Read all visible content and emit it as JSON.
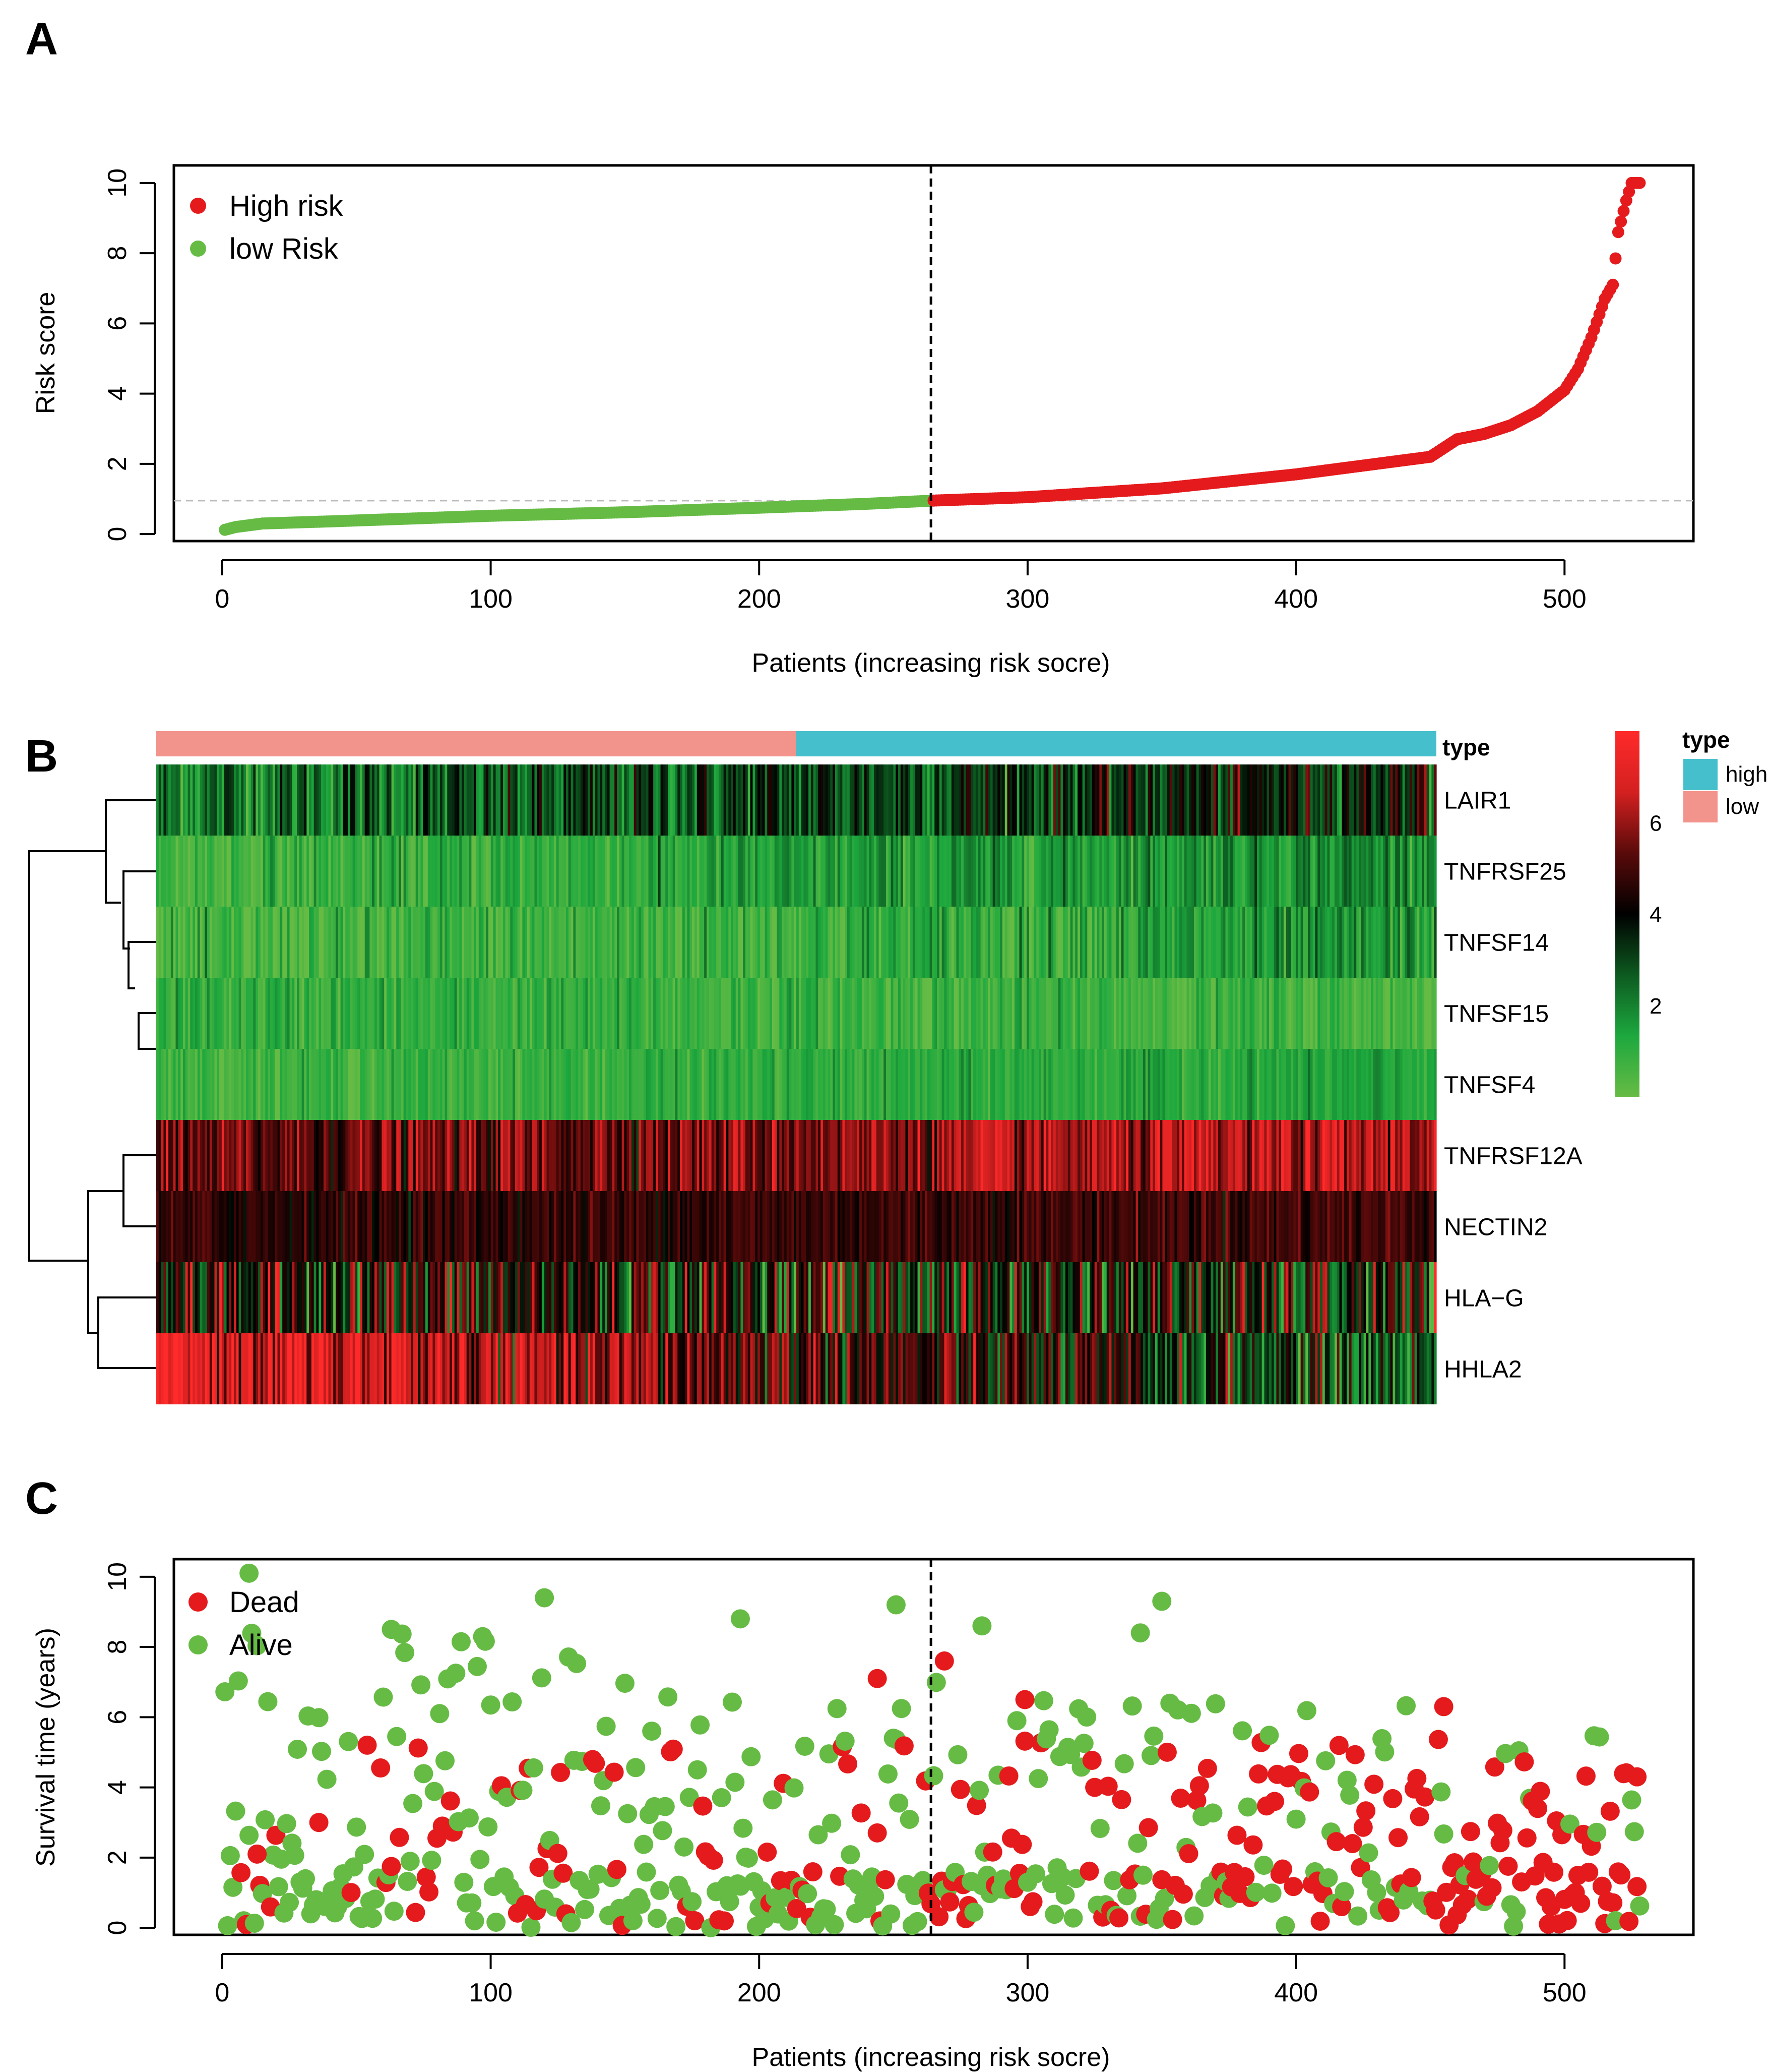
{
  "panels": {
    "a": "A",
    "b": "B",
    "c": "C"
  },
  "colors": {
    "high": "#e41a1c",
    "low": "#66bb44",
    "high_type": "#46bfcc",
    "low_type": "#f2938c",
    "axis": "#000000",
    "threshold_line": "#bbbbbb"
  },
  "chart_data": [
    {
      "id": "risk_score",
      "type": "scatter",
      "title": "",
      "xlabel": "Patients (increasing risk socre)",
      "ylabel": "Risk score",
      "xlim": [
        -18,
        548
      ],
      "ylim": [
        -0.2,
        10.5
      ],
      "xticks": [
        0,
        100,
        200,
        300,
        400,
        500
      ],
      "yticks": [
        0,
        2,
        4,
        6,
        8,
        10
      ],
      "cutoff_index": 264,
      "threshold_score": 0.95,
      "n_patients": 528,
      "legend": [
        {
          "label": "High risk",
          "color_key": "high"
        },
        {
          "label": "low Risk",
          "color_key": "low"
        }
      ],
      "legend_position": "top-left",
      "curve_points": [
        [
          1,
          0.12
        ],
        [
          5,
          0.2
        ],
        [
          15,
          0.3
        ],
        [
          40,
          0.36
        ],
        [
          100,
          0.52
        ],
        [
          150,
          0.62
        ],
        [
          200,
          0.75
        ],
        [
          240,
          0.86
        ],
        [
          264,
          0.95
        ],
        [
          300,
          1.05
        ],
        [
          350,
          1.3
        ],
        [
          400,
          1.7
        ],
        [
          430,
          2.0
        ],
        [
          450,
          2.2
        ],
        [
          460,
          2.7
        ],
        [
          470,
          2.85
        ],
        [
          480,
          3.1
        ],
        [
          490,
          3.5
        ],
        [
          500,
          4.1
        ],
        [
          505,
          4.7
        ],
        [
          510,
          5.6
        ],
        [
          515,
          6.7
        ],
        [
          518,
          7.1
        ],
        [
          520,
          8.6
        ],
        [
          523,
          9.5
        ],
        [
          525,
          10.0
        ],
        [
          528,
          10.0
        ]
      ]
    },
    {
      "id": "expression_heatmap",
      "type": "heatmap",
      "title": "",
      "genes": [
        "LAIR1",
        "TNFRSF25",
        "TNFSF14",
        "TNFSF15",
        "TNFSF4",
        "TNFRSF12A",
        "NECTIN2",
        "HLA−G",
        "HHLA2"
      ],
      "gene_base_values": [
        3.0,
        1.3,
        0.9,
        0.8,
        1.0,
        5.8,
        4.8,
        4.0,
        5.0
      ],
      "gene_trend_per_risk": [
        0.9,
        0.7,
        0.6,
        -0.2,
        0.3,
        0.6,
        0.2,
        -0.4,
        -2.5
      ],
      "gene_noise": [
        1.0,
        0.6,
        0.7,
        0.5,
        0.4,
        0.9,
        0.5,
        1.7,
        1.4
      ],
      "n_samples": 528,
      "type_bar_label": "type",
      "type_groups": [
        {
          "label": "low",
          "from": 0,
          "to": 264,
          "color_key": "low_type"
        },
        {
          "label": "high",
          "from": 264,
          "to": 528,
          "color_key": "high_type"
        }
      ],
      "colorbar": {
        "min": 0,
        "max": 8,
        "ticks": [
          2,
          4,
          6
        ],
        "colors": [
          "#66bb44",
          "#1da83e",
          "#0d5a20",
          "#000000",
          "#5a0a0a",
          "#d42020",
          "#ff2a2a"
        ]
      },
      "legend_title": "type",
      "legend_items": [
        {
          "label": "high",
          "color_key": "high_type"
        },
        {
          "label": "low",
          "color_key": "low_type"
        }
      ],
      "dendrogram": "rows clustered: {LAIR1, {TNFRSF25, {TNFSF14, {TNFSF15, TNFSF4}}}} and {{TNFRSF12A, NECTIN2}, {HLA-G, HHLA2}}"
    },
    {
      "id": "survival_status",
      "type": "scatter",
      "title": "",
      "xlabel": "Patients (increasing risk socre)",
      "ylabel": "Survival time (years)",
      "xlim": [
        -18,
        548
      ],
      "ylim": [
        -0.2,
        10.5
      ],
      "xticks": [
        0,
        100,
        200,
        300,
        400,
        500
      ],
      "yticks": [
        0,
        2,
        4,
        6,
        8,
        10
      ],
      "cutoff_index": 264,
      "legend": [
        {
          "label": "Dead",
          "color_key": "high"
        },
        {
          "label": "Alive",
          "color_key": "low"
        }
      ],
      "legend_position": "top-left",
      "n_points": 528,
      "highlight_points": [
        {
          "x": 10,
          "y": 10.1,
          "status": "Alive"
        },
        {
          "x": 120,
          "y": 9.4,
          "status": "Alive"
        },
        {
          "x": 251,
          "y": 9.2,
          "status": "Alive"
        },
        {
          "x": 350,
          "y": 9.3,
          "status": "Alive"
        },
        {
          "x": 269,
          "y": 7.6,
          "status": "Dead"
        },
        {
          "x": 244,
          "y": 7.1,
          "status": "Dead"
        },
        {
          "x": 455,
          "y": 6.3,
          "status": "Dead"
        },
        {
          "x": 299,
          "y": 6.5,
          "status": "Dead"
        },
        {
          "x": 527,
          "y": 4.3,
          "status": "Dead"
        },
        {
          "x": 13,
          "y": 2.1,
          "status": "Dead"
        },
        {
          "x": 36,
          "y": 3.0,
          "status": "Dead"
        },
        {
          "x": 283,
          "y": 8.6,
          "status": "Alive"
        },
        {
          "x": 63,
          "y": 8.5,
          "status": "Alive"
        },
        {
          "x": 193,
          "y": 8.8,
          "status": "Alive"
        },
        {
          "x": 342,
          "y": 8.4,
          "status": "Alive"
        }
      ]
    }
  ]
}
